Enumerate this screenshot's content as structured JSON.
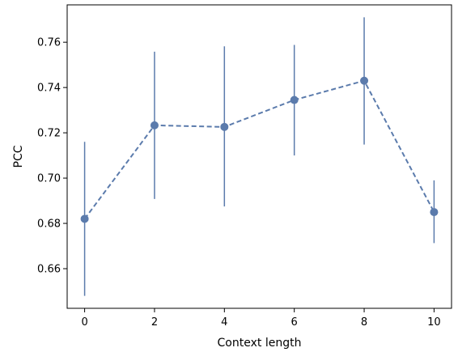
{
  "chart_data": {
    "type": "line",
    "title": "",
    "xlabel": "Context length",
    "ylabel": "PCC",
    "x": [
      0,
      2,
      4,
      6,
      8,
      10
    ],
    "y": [
      0.682,
      0.7233,
      0.7226,
      0.7345,
      0.743,
      0.685
    ],
    "error_low": [
      0.648,
      0.6908,
      0.6875,
      0.71,
      0.7148,
      0.6713
    ],
    "error_high": [
      0.716,
      0.7558,
      0.7582,
      0.7588,
      0.771,
      0.699
    ],
    "xlim": [
      -0.5,
      10.5
    ],
    "ylim": [
      0.6425,
      0.7765
    ],
    "xticks": [
      0,
      2,
      4,
      6,
      8,
      10
    ],
    "yticks": [
      0.66,
      0.68,
      0.7,
      0.72,
      0.74,
      0.76
    ],
    "ytick_labels": [
      "0.66",
      "0.68",
      "0.70",
      "0.72",
      "0.74",
      "0.76"
    ],
    "grid": false,
    "line_style": "dashed",
    "color": "#5b7bac"
  }
}
